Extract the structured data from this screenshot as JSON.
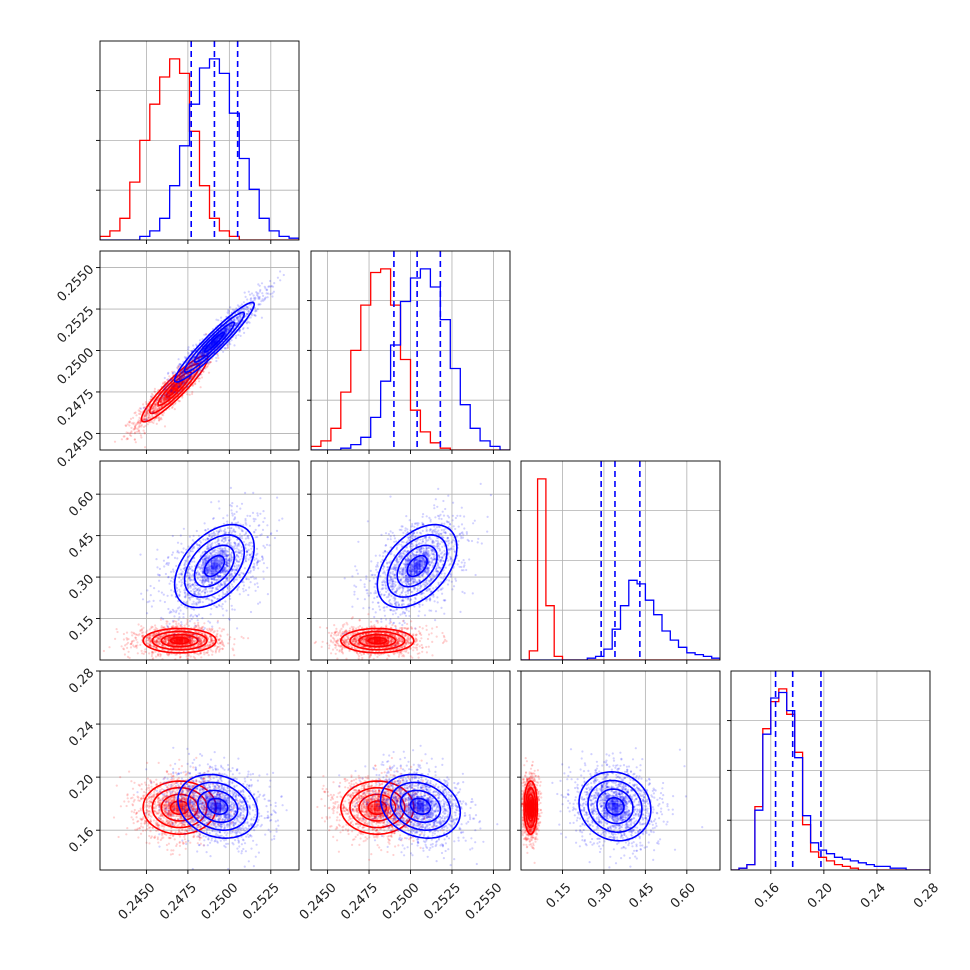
{
  "colors": {
    "red": "#ff0000",
    "blue": "#0000ff",
    "grid": "#b0b0b0",
    "axis": "#000000"
  },
  "chart_data": {
    "type": "corner",
    "layout": "4x4 lower-triangle",
    "grid": true,
    "series": [
      {
        "name": "",
        "color": "#ff0000"
      },
      {
        "name": "",
        "color": "#0000ff"
      }
    ],
    "parameters": [
      {
        "ticks": [
          0.245,
          0.2475,
          0.25,
          0.2525
        ],
        "range": [
          0.2422,
          0.2542
        ],
        "tick_labels": [
          "0.2450",
          "0.2475",
          "0.2500",
          "0.2525"
        ],
        "quantiles_blue": [
          0.2477,
          0.2491,
          0.2505
        ],
        "hist_red": {
          "x0": 0.2422,
          "dx": 0.0006,
          "counts": [
            0.02,
            0.05,
            0.12,
            0.32,
            0.55,
            0.75,
            0.9,
            1.0,
            0.92,
            0.6,
            0.3,
            0.12,
            0.05,
            0.02,
            0.0,
            0.0,
            0.0,
            0.0,
            0.0,
            0.0
          ]
        },
        "hist_blue": {
          "x0": 0.2422,
          "dx": 0.0006,
          "counts": [
            0.0,
            0.0,
            0.0,
            0.0,
            0.02,
            0.05,
            0.12,
            0.3,
            0.52,
            0.75,
            0.95,
            1.0,
            0.92,
            0.7,
            0.45,
            0.28,
            0.12,
            0.05,
            0.02,
            0.01
          ]
        }
      },
      {
        "ticks": [
          0.245,
          0.2475,
          0.25,
          0.2525,
          0.255
        ],
        "range": [
          0.244,
          0.256
        ],
        "tick_labels": [
          "0.2450",
          "0.2475",
          "0.2500",
          "0.2525",
          "0.2550"
        ],
        "quantiles_blue": [
          0.249,
          0.2504,
          0.2518
        ],
        "hist_red": {
          "x0": 0.244,
          "dx": 0.0006,
          "counts": [
            0.02,
            0.05,
            0.12,
            0.32,
            0.55,
            0.8,
            0.98,
            1.0,
            0.8,
            0.5,
            0.22,
            0.1,
            0.04,
            0.01,
            0.0,
            0.0,
            0.0,
            0.0,
            0.0,
            0.0
          ]
        },
        "hist_blue": {
          "x0": 0.244,
          "dx": 0.0006,
          "counts": [
            0.0,
            0.0,
            0.0,
            0.01,
            0.03,
            0.07,
            0.18,
            0.38,
            0.58,
            0.82,
            0.95,
            1.0,
            0.9,
            0.72,
            0.45,
            0.25,
            0.12,
            0.05,
            0.02,
            0.0
          ]
        }
      },
      {
        "ticks": [
          0.15,
          0.3,
          0.45,
          0.6
        ],
        "range": [
          0.0,
          0.72
        ],
        "tick_labels": [
          "0.15",
          "0.30",
          "0.45",
          "0.60"
        ],
        "quantiles_blue": [
          0.29,
          0.34,
          0.43
        ],
        "hist_red": {
          "x0": 0.0,
          "dx": 0.03,
          "counts": [
            0.0,
            0.05,
            1.0,
            0.3,
            0.02,
            0.0,
            0.0,
            0.0,
            0.0,
            0.0,
            0.0,
            0.0,
            0.0,
            0.0,
            0.0,
            0.0,
            0.0,
            0.0,
            0.0,
            0.0,
            0.0,
            0.0,
            0.0,
            0.0
          ]
        },
        "hist_blue": {
          "x0": 0.0,
          "dx": 0.03,
          "counts": [
            0.0,
            0.0,
            0.0,
            0.0,
            0.0,
            0.0,
            0.0,
            0.0,
            0.01,
            0.02,
            0.06,
            0.17,
            0.3,
            0.44,
            0.42,
            0.33,
            0.25,
            0.16,
            0.11,
            0.07,
            0.04,
            0.03,
            0.02,
            0.01
          ]
        }
      },
      {
        "ticks": [
          0.16,
          0.2,
          0.24,
          0.28
        ],
        "range": [
          0.13,
          0.28
        ],
        "tick_labels": [
          "0.16",
          "0.20",
          "0.24",
          "0.28"
        ],
        "quantiles_blue": [
          0.1636,
          0.1765,
          0.1978
        ],
        "hist_red": {
          "x0": 0.13,
          "dx": 0.006,
          "counts": [
            0.0,
            0.01,
            0.03,
            0.35,
            0.78,
            0.93,
            1.0,
            0.86,
            0.65,
            0.25,
            0.1,
            0.07,
            0.05,
            0.03,
            0.02,
            0.01,
            0.0,
            0.0,
            0.0,
            0.0,
            0.0,
            0.0,
            0.0,
            0.0,
            0.0
          ]
        },
        "hist_blue": {
          "x0": 0.13,
          "dx": 0.006,
          "counts": [
            0.0,
            0.01,
            0.03,
            0.33,
            0.75,
            0.95,
            0.98,
            0.88,
            0.62,
            0.3,
            0.15,
            0.11,
            0.09,
            0.07,
            0.06,
            0.05,
            0.04,
            0.03,
            0.02,
            0.02,
            0.01,
            0.01,
            0.0,
            0.0,
            0.0
          ]
        }
      }
    ],
    "clouds": {
      "1-0": {
        "red": {
          "cx": 0.2467,
          "cy": 0.2477,
          "sx": 0.001,
          "sy": 0.001,
          "rho": 0.92
        },
        "blue": {
          "cx": 0.2491,
          "cy": 0.2505,
          "sx": 0.0012,
          "sy": 0.0012,
          "rho": 0.95
        }
      },
      "2-0": {
        "red": {
          "cx": 0.247,
          "cy": 0.07,
          "sx": 0.0011,
          "sy": 0.022,
          "rho": 0.0
        },
        "blue": {
          "cx": 0.2491,
          "cy": 0.34,
          "sx": 0.0012,
          "sy": 0.075,
          "rho": 0.45
        }
      },
      "2-1": {
        "red": {
          "cx": 0.248,
          "cy": 0.07,
          "sx": 0.0011,
          "sy": 0.022,
          "rho": 0.0
        },
        "blue": {
          "cx": 0.2504,
          "cy": 0.34,
          "sx": 0.0012,
          "sy": 0.075,
          "rho": 0.45
        }
      },
      "3-0": {
        "red": {
          "cx": 0.247,
          "cy": 0.177,
          "sx": 0.0011,
          "sy": 0.01,
          "rho": 0.0
        },
        "blue": {
          "cx": 0.2493,
          "cy": 0.178,
          "sx": 0.0012,
          "sy": 0.012,
          "rho": -0.2
        }
      },
      "3-1": {
        "red": {
          "cx": 0.248,
          "cy": 0.177,
          "sx": 0.0011,
          "sy": 0.01,
          "rho": 0.0
        },
        "blue": {
          "cx": 0.2506,
          "cy": 0.178,
          "sx": 0.0012,
          "sy": 0.012,
          "rho": -0.2
        }
      },
      "3-2": {
        "red": {
          "cx": 0.035,
          "cy": 0.177,
          "sx": 0.012,
          "sy": 0.01,
          "rho": 0.0
        },
        "blue": {
          "cx": 0.34,
          "cy": 0.178,
          "sx": 0.065,
          "sy": 0.013,
          "rho": -0.1
        }
      }
    }
  }
}
